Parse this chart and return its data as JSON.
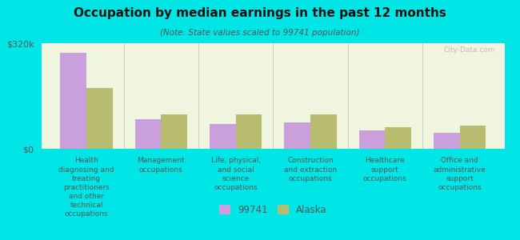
{
  "title": "Occupation by median earnings in the past 12 months",
  "subtitle": "(Note: State values scaled to 99741 population)",
  "categories": [
    "Health\ndiagnosing and\ntreating\npractitioners\nand other\ntechnical\noccupations",
    "Management\noccupations",
    "Life, physical,\nand social\nscience\noccupations",
    "Construction\nand extraction\noccupations",
    "Healthcare\nsupport\noccupations",
    "Office and\nadministrative\nsupport\noccupations"
  ],
  "values_99741": [
    290000,
    90000,
    75000,
    80000,
    55000,
    48000
  ],
  "values_alaska": [
    185000,
    105000,
    105000,
    105000,
    65000,
    70000
  ],
  "ylim": [
    0,
    320000
  ],
  "yticks": [
    0,
    320000
  ],
  "ytick_labels": [
    "$0",
    "$320k"
  ],
  "color_99741": "#c9a0dc",
  "color_alaska": "#b8bc6e",
  "background_color": "#00e5e5",
  "plot_bg_color_top": "#f0f5e0",
  "plot_bg_color_bottom": "#e8f0d8",
  "legend_label_99741": "99741",
  "legend_label_alaska": "Alaska",
  "watermark": "City-Data.com",
  "bar_width": 0.35
}
